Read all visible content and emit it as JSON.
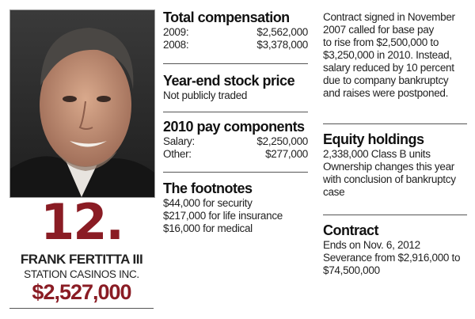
{
  "profile": {
    "rank": "12.",
    "name": "FRANK FERTITTA III",
    "company": "STATION CASINOS INC.",
    "total": "$2,527,000"
  },
  "total_compensation": {
    "heading": "Total compensation",
    "rows": [
      {
        "label": "2009:",
        "value": "$2,562,000"
      },
      {
        "label": "2008:",
        "value": "$3,378,000"
      }
    ]
  },
  "stock_price": {
    "heading": "Year-end stock price",
    "text": "Not publicly traded"
  },
  "pay_components": {
    "heading": "2010 pay components",
    "rows": [
      {
        "label": "Salary:",
        "value": "$2,250,000"
      },
      {
        "label": "Other:",
        "value": "$277,000"
      }
    ]
  },
  "footnotes": {
    "heading": "The footnotes",
    "lines": [
      "$44,000 for security",
      "$217,000 for life insurance",
      "$16,000 for medical"
    ]
  },
  "contract_note": {
    "lines": [
      "Contract signed in November",
      "2007 called for base pay",
      "to rise from $2,500,000 to",
      "$3,250,000 in 2010. Instead,",
      "salary reduced by 10 percent",
      "due to company bankruptcy",
      "and raises were postponed."
    ]
  },
  "equity": {
    "heading": "Equity holdings",
    "lines": [
      "2,338,000 Class B units",
      "Ownership changes this year",
      "with conclusion of bankruptcy",
      "case"
    ]
  },
  "contract": {
    "heading": "Contract",
    "lines": [
      "Ends on Nov. 6, 2012",
      "Severance from $2,916,000 to",
      "$74,500,000"
    ]
  }
}
